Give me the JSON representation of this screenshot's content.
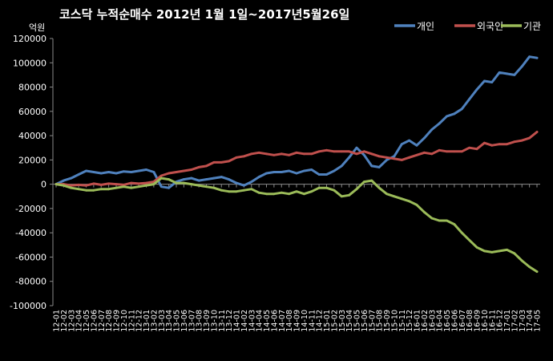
{
  "chart_data": {
    "type": "line",
    "title": "코스닥  누적순매수 2012년 1월 1일~2017년5월26일",
    "ylabel": "억원",
    "xlabel": "",
    "ylim": [
      -100000,
      120000
    ],
    "yticks": [
      120000,
      100000,
      80000,
      60000,
      40000,
      20000,
      0,
      -20000,
      -40000,
      -60000,
      -80000,
      -100000
    ],
    "grid": false,
    "legend_position": "top-right",
    "x": [
      "12-01",
      "12-02",
      "12-03",
      "12-04",
      "12-05",
      "12-06",
      "12-07",
      "12-08",
      "12-09",
      "12-10",
      "12-11",
      "12-12",
      "13-01",
      "13-02",
      "13-03",
      "13-04",
      "13-05",
      "13-06",
      "13-07",
      "13-08",
      "13-09",
      "13-10",
      "13-11",
      "13-12",
      "14-01",
      "14-02",
      "14-03",
      "14-04",
      "14-05",
      "14-06",
      "14-07",
      "14-08",
      "14-09",
      "14-10",
      "14-11",
      "14-12",
      "15-01",
      "15-02",
      "15-03",
      "15-04",
      "15-05",
      "15-06",
      "15-07",
      "15-08",
      "15-09",
      "15-10",
      "15-11",
      "15-12",
      "16-01",
      "16-02",
      "16-03",
      "16-04",
      "16-05",
      "16-06",
      "16-07",
      "16-08",
      "16-09",
      "16-10",
      "16-11",
      "16-12",
      "17-01",
      "17-02",
      "17-03",
      "17-04",
      "17-05"
    ],
    "series": [
      {
        "name": "개인",
        "color": "#4f81bd",
        "values": [
          0,
          3000,
          5000,
          8000,
          11000,
          10000,
          9000,
          10000,
          9000,
          10500,
          10000,
          11000,
          12000,
          10000,
          -2000,
          -3000,
          2000,
          4000,
          5000,
          3000,
          4000,
          5000,
          6000,
          4000,
          1000,
          -1000,
          2000,
          6000,
          9000,
          10000,
          10000,
          11000,
          9000,
          11000,
          12000,
          8000,
          8000,
          11000,
          15000,
          22000,
          30000,
          24000,
          15000,
          14000,
          20000,
          23000,
          33000,
          36000,
          32000,
          38000,
          45000,
          50000,
          56000,
          58000,
          62000,
          70000,
          78000,
          85000,
          84000,
          92000,
          91000,
          90000,
          97000,
          105000,
          104000
        ]
      },
      {
        "name": "외국인",
        "color": "#c0504d",
        "values": [
          0,
          0,
          -1000,
          -500,
          -1000,
          500,
          -500,
          500,
          0,
          -500,
          1000,
          500,
          1000,
          2000,
          7000,
          9000,
          10000,
          11000,
          12000,
          14000,
          15000,
          18000,
          18000,
          19000,
          22000,
          23000,
          25000,
          26000,
          25000,
          24000,
          25000,
          24000,
          26000,
          25000,
          25000,
          27000,
          28000,
          27000,
          27000,
          27000,
          25000,
          27000,
          25000,
          23000,
          22000,
          21000,
          20000,
          22000,
          24000,
          26000,
          25000,
          28000,
          27000,
          27000,
          27000,
          30000,
          29000,
          34000,
          32000,
          33000,
          33000,
          35000,
          36000,
          38000,
          43000
        ]
      },
      {
        "name": "기관",
        "color": "#9bbb59",
        "values": [
          0,
          -1000,
          -3000,
          -4000,
          -5000,
          -5000,
          -4000,
          -4000,
          -3000,
          -2000,
          -3000,
          -2000,
          -1000,
          0,
          5000,
          4000,
          1000,
          1000,
          0,
          -1000,
          -2000,
          -3000,
          -5000,
          -6000,
          -6000,
          -5000,
          -4000,
          -7000,
          -8000,
          -8000,
          -7000,
          -8000,
          -6000,
          -8000,
          -6000,
          -3000,
          -3000,
          -5000,
          -10000,
          -9000,
          -4000,
          2000,
          3000,
          -3000,
          -8000,
          -10000,
          -12000,
          -14000,
          -17000,
          -23000,
          -28000,
          -30000,
          -30000,
          -33000,
          -40000,
          -46000,
          -52000,
          -55000,
          -56000,
          -55000,
          -54000,
          -57000,
          -63000,
          -68000,
          -72000
        ]
      }
    ]
  }
}
